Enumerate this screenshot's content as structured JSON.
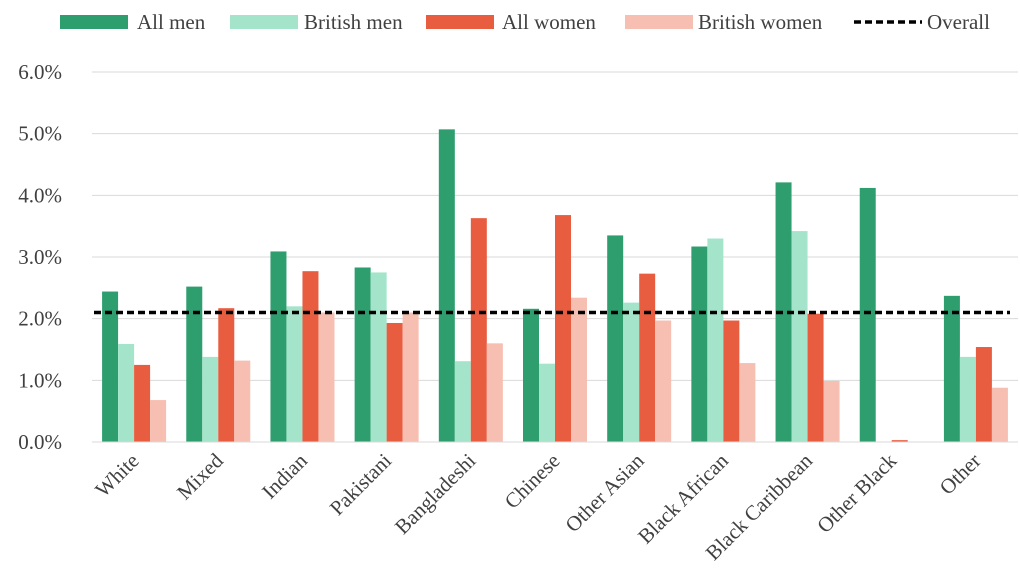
{
  "chart_data": {
    "type": "bar",
    "title": "",
    "xlabel": "",
    "ylabel": "",
    "ylim": [
      0,
      6
    ],
    "y_tick_values": [
      0,
      1,
      2,
      3,
      4,
      5,
      6
    ],
    "y_tick_labels": [
      "0.0%",
      "1.0%",
      "2.0%",
      "3.0%",
      "4.0%",
      "5.0%",
      "6.0%"
    ],
    "grid": "horizontal",
    "legend_position": "top",
    "categories": [
      "White",
      "Mixed",
      "Indian",
      "Pakistani",
      "Bangladeshi",
      "Chinese",
      "Other Asian",
      "Black African",
      "Black Caribbean",
      "Other Black",
      "Other"
    ],
    "series": [
      {
        "name": "All men",
        "color": "#2e9e6f",
        "values": [
          2.44,
          2.52,
          3.09,
          2.83,
          5.07,
          2.16,
          3.35,
          3.17,
          4.21,
          4.12,
          2.37
        ]
      },
      {
        "name": "British men",
        "color": "#a3e4cb",
        "values": [
          1.59,
          1.38,
          2.2,
          2.75,
          1.31,
          1.27,
          2.26,
          3.3,
          3.42,
          0,
          1.38
        ]
      },
      {
        "name": "All women",
        "color": "#e85d40",
        "values": [
          1.25,
          2.17,
          2.77,
          1.93,
          3.63,
          3.68,
          2.73,
          1.97,
          2.08,
          0.03,
          1.54
        ]
      },
      {
        "name": "British women",
        "color": "#f6bfb1",
        "values": [
          0.68,
          1.32,
          2.1,
          2.1,
          1.6,
          2.34,
          1.97,
          1.28,
          0.99,
          0,
          0.88
        ]
      }
    ],
    "reference_line": {
      "name": "Overall",
      "value": 2.1,
      "color": "#000000",
      "style": "dashed"
    }
  }
}
